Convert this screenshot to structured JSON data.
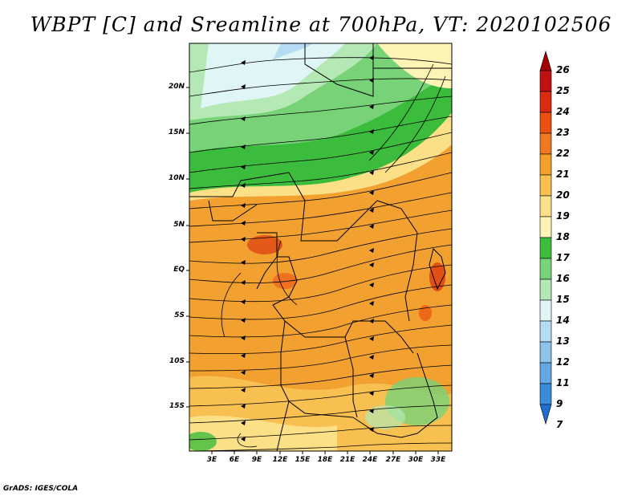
{
  "title": "WBPT [C] and Sreamline at 700hPa, VT: 2020102506",
  "credit": "GrADS: IGES/COLA",
  "map": {
    "lat_labels": [
      "20N",
      "15N",
      "10N",
      "5N",
      "EQ",
      "5S",
      "10S",
      "15S"
    ],
    "lon_labels": [
      "3E",
      "6E",
      "9E",
      "12E",
      "15E",
      "18E",
      "21E",
      "24E",
      "27E",
      "30E",
      "33E"
    ]
  },
  "colorbar": {
    "levels": [
      "26",
      "25",
      "24",
      "23",
      "22",
      "21",
      "20",
      "19",
      "18",
      "17",
      "16",
      "15",
      "14",
      "13",
      "12",
      "11",
      "9",
      "7"
    ],
    "colors": [
      "#a40000",
      "#c01010",
      "#dc2a10",
      "#ec5010",
      "#f07820",
      "#f4a028",
      "#f8c050",
      "#fce088",
      "#fcf4b4",
      "#3cbc3c",
      "#78d278",
      "#b4e8b4",
      "#e0f6f6",
      "#b4dcf4",
      "#8cc4ec",
      "#64a8e4",
      "#3c8cdc",
      "#1e6ed0"
    ]
  }
}
